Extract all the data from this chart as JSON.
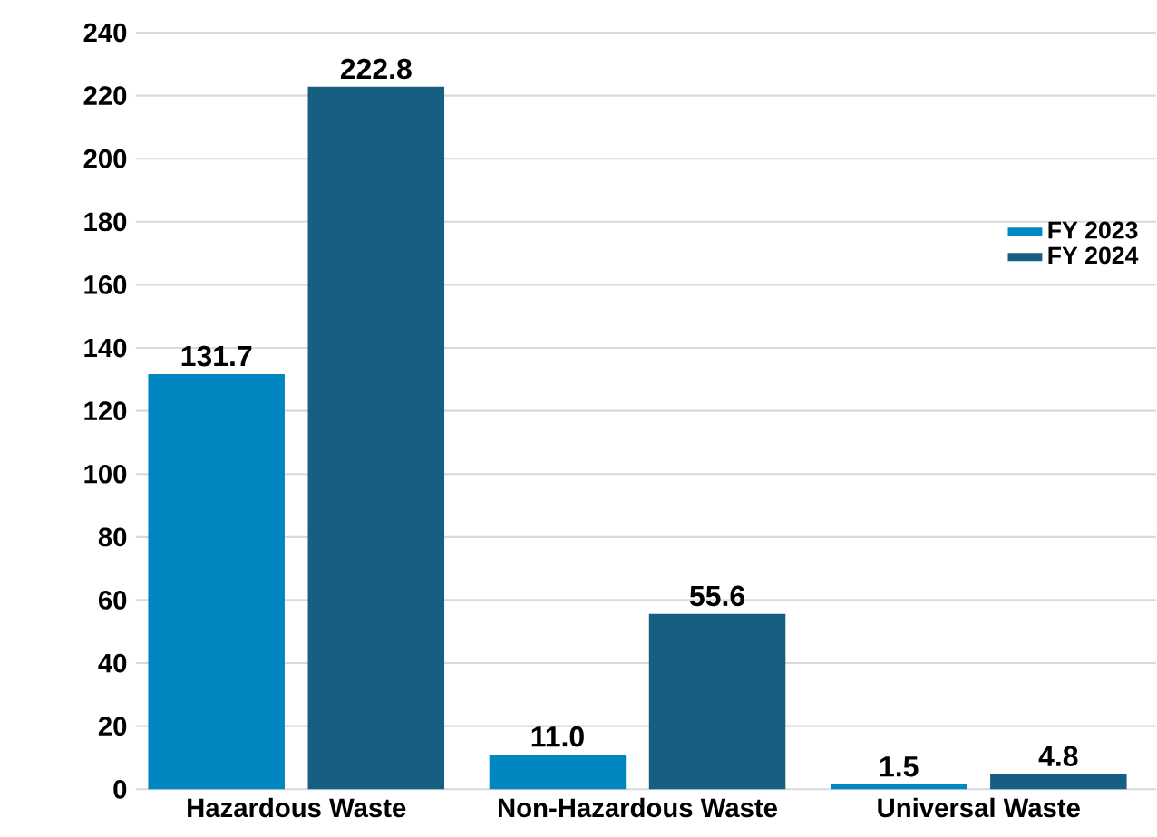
{
  "chart_data": {
    "type": "bar",
    "categories": [
      "Hazardous Waste",
      "Non-Hazardous Waste",
      "Universal Waste"
    ],
    "series": [
      {
        "name": "FY 2023",
        "color": "#0086c0",
        "values": [
          131.7,
          11.0,
          1.5
        ],
        "value_labels": [
          "131.7",
          "11.0",
          "1.5"
        ]
      },
      {
        "name": "FY 2024",
        "color": "#175f82",
        "values": [
          222.8,
          55.6,
          4.8
        ],
        "value_labels": [
          "222.8",
          "55.6",
          "4.8"
        ]
      }
    ],
    "ylim": [
      0,
      240
    ],
    "yticks": [
      0,
      20,
      40,
      60,
      80,
      100,
      120,
      140,
      160,
      180,
      200,
      220,
      240
    ],
    "grid": "y",
    "legend": "right"
  }
}
